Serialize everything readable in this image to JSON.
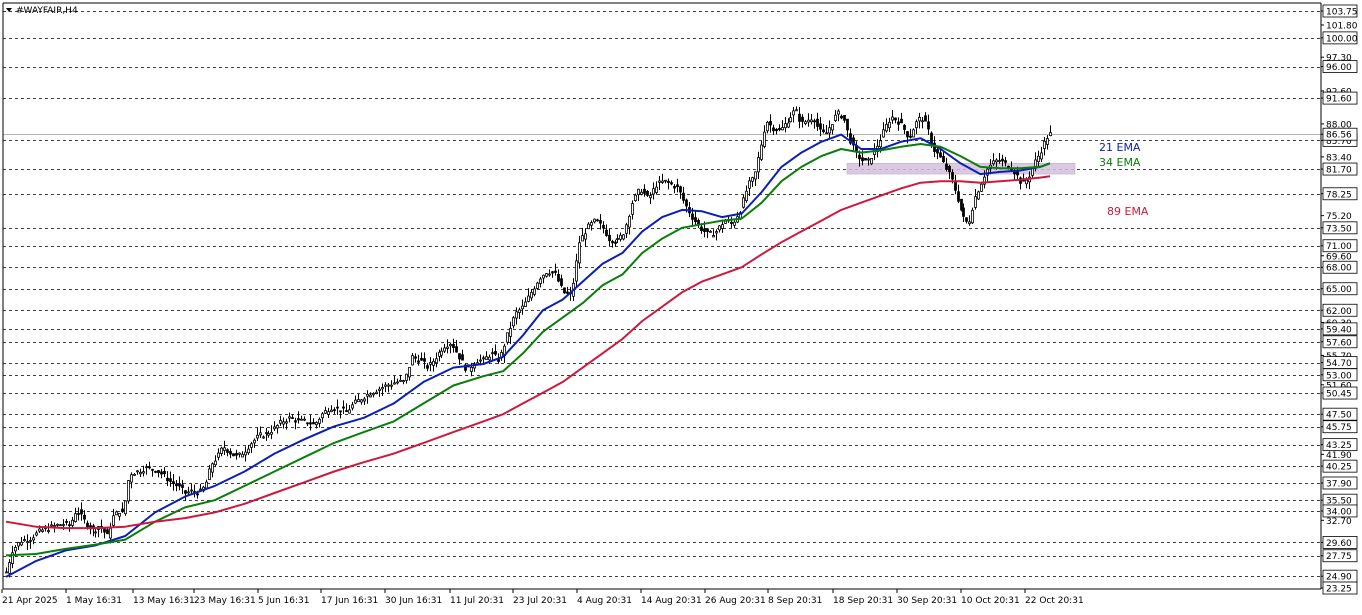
{
  "chart_data": {
    "type": "candlestick",
    "symbol_title": "#WAYFAIR,H4",
    "ylim": [
      23.25,
      103.75
    ],
    "price_levels": [
      103.75,
      101.8,
      100.0,
      97.3,
      96.0,
      92.6,
      91.6,
      88.0,
      86.56,
      85.7,
      83.4,
      81.7,
      78.25,
      75.2,
      73.5,
      71.0,
      69.6,
      68.0,
      65.0,
      62.0,
      60.3,
      59.4,
      57.6,
      55.7,
      54.7,
      53.0,
      51.6,
      50.45,
      47.5,
      45.75,
      43.25,
      41.9,
      40.25,
      37.9,
      35.5,
      34.0,
      32.7,
      29.6,
      27.75,
      24.9,
      23.25
    ],
    "boxed_levels": [
      103.75,
      100.0,
      96.0,
      91.6,
      85.7,
      81.7,
      78.25,
      73.5,
      71.0,
      68.0,
      65.0,
      62.0,
      59.4,
      57.6,
      54.7,
      53.0,
      50.45,
      47.5,
      45.75,
      43.25,
      40.25,
      37.9,
      35.5,
      34.0,
      29.6,
      27.75,
      24.9,
      23.25
    ],
    "dashed_levels": [
      103.75,
      100.0,
      96.0,
      91.6,
      85.7,
      81.7,
      78.25,
      73.5,
      71.0,
      68.0,
      65.0,
      62.0,
      59.4,
      57.6,
      54.7,
      53.0,
      50.45,
      47.5,
      45.75,
      43.25,
      40.25,
      37.9,
      35.5,
      34.0,
      29.6,
      27.75,
      24.9
    ],
    "current_price": 86.56,
    "time_labels": [
      "21 Apr 2025",
      "1 May 16:31",
      "13 May 16:31",
      "23 May 16:31",
      "5 Jun 16:31",
      "17 Jun 16:31",
      "30 Jun 16:31",
      "11 Jul 20:31",
      "23 Jul 20:31",
      "4 Aug 20:31",
      "14 Aug 20:31",
      "26 Aug 20:31",
      "8 Sep 20:31",
      "18 Sep 20:31",
      "30 Sep 20:31",
      "10 Oct 20:31",
      "22 Oct 20:31"
    ],
    "price_path": [
      [
        0,
        25.5
      ],
      [
        6,
        28.5
      ],
      [
        14,
        29.8
      ],
      [
        24,
        30.2
      ],
      [
        34,
        31.2
      ],
      [
        46,
        31.8
      ],
      [
        56,
        32.2
      ],
      [
        64,
        32.0
      ],
      [
        70,
        34.2
      ],
      [
        76,
        33.0
      ],
      [
        82,
        32.0
      ],
      [
        88,
        31.2
      ],
      [
        94,
        32.0
      ],
      [
        102,
        30.5
      ],
      [
        108,
        33.2
      ],
      [
        114,
        34.0
      ],
      [
        118,
        33.5
      ],
      [
        124,
        39.2
      ],
      [
        132,
        39.5
      ],
      [
        140,
        40.0
      ],
      [
        150,
        39.8
      ],
      [
        158,
        39.0
      ],
      [
        166,
        38.0
      ],
      [
        172,
        37.5
      ],
      [
        180,
        36.5
      ],
      [
        188,
        36.8
      ],
      [
        194,
        36.5
      ],
      [
        200,
        37.5
      ],
      [
        206,
        40.5
      ],
      [
        212,
        41.5
      ],
      [
        218,
        43.0
      ],
      [
        226,
        42.0
      ],
      [
        232,
        41.5
      ],
      [
        240,
        42.5
      ],
      [
        246,
        43.5
      ],
      [
        254,
        44.5
      ],
      [
        262,
        44.8
      ],
      [
        270,
        45.5
      ],
      [
        278,
        46.5
      ],
      [
        286,
        47.0
      ],
      [
        294,
        46.5
      ],
      [
        302,
        46.5
      ],
      [
        310,
        46.0
      ],
      [
        318,
        47.5
      ],
      [
        326,
        48.5
      ],
      [
        334,
        48.2
      ],
      [
        342,
        47.8
      ],
      [
        350,
        49.0
      ],
      [
        358,
        49.8
      ],
      [
        366,
        50.5
      ],
      [
        374,
        51.0
      ],
      [
        382,
        51.5
      ],
      [
        392,
        52.0
      ],
      [
        400,
        52.0
      ],
      [
        408,
        55.5
      ],
      [
        416,
        55.0
      ],
      [
        424,
        54.0
      ],
      [
        432,
        55.5
      ],
      [
        440,
        57.0
      ],
      [
        448,
        57.5
      ],
      [
        456,
        55.5
      ],
      [
        464,
        53.5
      ],
      [
        472,
        55.0
      ],
      [
        480,
        55.0
      ],
      [
        488,
        56.0
      ],
      [
        496,
        55.0
      ],
      [
        504,
        58.5
      ],
      [
        512,
        61.5
      ],
      [
        520,
        62.5
      ],
      [
        528,
        64.5
      ],
      [
        536,
        66.5
      ],
      [
        544,
        67.5
      ],
      [
        552,
        67.0
      ],
      [
        560,
        64.5
      ],
      [
        568,
        64.0
      ],
      [
        576,
        71.5
      ],
      [
        584,
        73.5
      ],
      [
        592,
        74.5
      ],
      [
        600,
        73.5
      ],
      [
        606,
        72.0
      ],
      [
        614,
        71.5
      ],
      [
        622,
        73.0
      ],
      [
        630,
        77.0
      ],
      [
        638,
        79.0
      ],
      [
        646,
        77.5
      ],
      [
        654,
        79.5
      ],
      [
        662,
        80.0
      ],
      [
        670,
        79.5
      ],
      [
        676,
        79.0
      ],
      [
        682,
        77.0
      ],
      [
        690,
        75.0
      ],
      [
        698,
        73.5
      ],
      [
        706,
        72.5
      ],
      [
        714,
        73.0
      ],
      [
        722,
        74.5
      ],
      [
        730,
        74.0
      ],
      [
        738,
        76.0
      ],
      [
        746,
        79.5
      ],
      [
        752,
        80.5
      ],
      [
        758,
        84.5
      ],
      [
        764,
        88.5
      ],
      [
        770,
        87.5
      ],
      [
        778,
        87.0
      ],
      [
        786,
        88.5
      ],
      [
        794,
        90.0
      ],
      [
        800,
        88.0
      ],
      [
        806,
        88.5
      ],
      [
        812,
        89.0
      ],
      [
        818,
        87.0
      ],
      [
        824,
        86.5
      ],
      [
        830,
        88.0
      ],
      [
        836,
        89.5
      ],
      [
        842,
        89.0
      ],
      [
        848,
        86.0
      ],
      [
        854,
        84.0
      ],
      [
        860,
        83.0
      ],
      [
        866,
        82.5
      ],
      [
        872,
        84.0
      ],
      [
        878,
        85.5
      ],
      [
        884,
        87.5
      ],
      [
        890,
        89.0
      ],
      [
        896,
        88.5
      ],
      [
        902,
        87.5
      ],
      [
        908,
        86.0
      ],
      [
        914,
        88.0
      ],
      [
        920,
        89.0
      ],
      [
        926,
        87.5
      ],
      [
        932,
        84.5
      ],
      [
        938,
        83.5
      ],
      [
        944,
        82.0
      ],
      [
        950,
        80.5
      ],
      [
        956,
        78.0
      ],
      [
        962,
        75.0
      ],
      [
        968,
        74.0
      ],
      [
        974,
        77.5
      ],
      [
        980,
        79.5
      ],
      [
        986,
        81.5
      ],
      [
        992,
        82.5
      ],
      [
        998,
        83.0
      ],
      [
        1004,
        82.5
      ],
      [
        1010,
        82.0
      ],
      [
        1016,
        81.0
      ],
      [
        1022,
        79.5
      ],
      [
        1028,
        80.5
      ],
      [
        1034,
        82.5
      ],
      [
        1040,
        84.0
      ],
      [
        1046,
        86.0
      ],
      [
        1050,
        86.56
      ]
    ],
    "series": [
      {
        "name": "21 EMA",
        "color": "#0c1fb5",
        "points": [
          [
            0,
            24.8
          ],
          [
            30,
            27.0
          ],
          [
            60,
            28.5
          ],
          [
            90,
            29.2
          ],
          [
            120,
            30.5
          ],
          [
            150,
            33.8
          ],
          [
            180,
            36.0
          ],
          [
            210,
            37.5
          ],
          [
            240,
            39.5
          ],
          [
            270,
            42.0
          ],
          [
            300,
            44.0
          ],
          [
            330,
            45.8
          ],
          [
            360,
            47.0
          ],
          [
            390,
            49.0
          ],
          [
            420,
            52.0
          ],
          [
            450,
            54.0
          ],
          [
            480,
            54.5
          ],
          [
            500,
            55.5
          ],
          [
            520,
            58.5
          ],
          [
            540,
            62.0
          ],
          [
            560,
            63.5
          ],
          [
            580,
            66.0
          ],
          [
            600,
            68.5
          ],
          [
            620,
            70.0
          ],
          [
            640,
            73.0
          ],
          [
            660,
            75.0
          ],
          [
            680,
            76.0
          ],
          [
            700,
            75.8
          ],
          [
            720,
            75.0
          ],
          [
            740,
            75.5
          ],
          [
            760,
            78.5
          ],
          [
            780,
            82.0
          ],
          [
            800,
            84.0
          ],
          [
            820,
            85.5
          ],
          [
            840,
            86.5
          ],
          [
            860,
            84.5
          ],
          [
            880,
            84.5
          ],
          [
            900,
            85.5
          ],
          [
            920,
            86.0
          ],
          [
            940,
            84.5
          ],
          [
            960,
            82.5
          ],
          [
            980,
            81.0
          ],
          [
            1000,
            81.3
          ],
          [
            1020,
            81.5
          ],
          [
            1040,
            82.0
          ],
          [
            1050,
            82.5
          ]
        ]
      },
      {
        "name": "34 EMA",
        "color": "#0a7d0a",
        "points": [
          [
            0,
            27.8
          ],
          [
            30,
            28.0
          ],
          [
            60,
            28.7
          ],
          [
            90,
            29.3
          ],
          [
            120,
            30.0
          ],
          [
            150,
            32.5
          ],
          [
            180,
            34.5
          ],
          [
            210,
            35.5
          ],
          [
            240,
            37.5
          ],
          [
            270,
            39.5
          ],
          [
            300,
            41.5
          ],
          [
            330,
            43.5
          ],
          [
            360,
            45.0
          ],
          [
            390,
            46.5
          ],
          [
            420,
            49.0
          ],
          [
            450,
            51.5
          ],
          [
            480,
            52.8
          ],
          [
            500,
            53.5
          ],
          [
            520,
            56.0
          ],
          [
            540,
            59.0
          ],
          [
            560,
            61.0
          ],
          [
            580,
            63.0
          ],
          [
            600,
            65.5
          ],
          [
            620,
            67.0
          ],
          [
            640,
            70.0
          ],
          [
            660,
            72.0
          ],
          [
            680,
            73.5
          ],
          [
            700,
            74.0
          ],
          [
            720,
            74.5
          ],
          [
            740,
            74.8
          ],
          [
            760,
            77.0
          ],
          [
            780,
            80.0
          ],
          [
            800,
            82.0
          ],
          [
            820,
            83.5
          ],
          [
            840,
            84.5
          ],
          [
            860,
            84.0
          ],
          [
            880,
            84.3
          ],
          [
            900,
            84.8
          ],
          [
            920,
            85.2
          ],
          [
            940,
            84.8
          ],
          [
            960,
            83.5
          ],
          [
            980,
            82.0
          ],
          [
            1000,
            81.8
          ],
          [
            1020,
            81.8
          ],
          [
            1040,
            82.0
          ],
          [
            1050,
            82.5
          ]
        ]
      },
      {
        "name": "89 EMA",
        "color": "#cc1a3c",
        "points": [
          [
            0,
            32.5
          ],
          [
            30,
            31.8
          ],
          [
            60,
            31.6
          ],
          [
            90,
            31.6
          ],
          [
            120,
            31.8
          ],
          [
            150,
            32.5
          ],
          [
            180,
            33.0
          ],
          [
            210,
            33.8
          ],
          [
            240,
            35.0
          ],
          [
            270,
            36.5
          ],
          [
            300,
            38.0
          ],
          [
            330,
            39.5
          ],
          [
            360,
            40.8
          ],
          [
            390,
            42.0
          ],
          [
            420,
            43.5
          ],
          [
            450,
            45.0
          ],
          [
            480,
            46.5
          ],
          [
            500,
            47.5
          ],
          [
            520,
            49.0
          ],
          [
            540,
            50.5
          ],
          [
            560,
            52.0
          ],
          [
            580,
            54.0
          ],
          [
            600,
            56.0
          ],
          [
            620,
            58.0
          ],
          [
            640,
            60.5
          ],
          [
            660,
            62.5
          ],
          [
            680,
            64.5
          ],
          [
            700,
            66.0
          ],
          [
            720,
            67.0
          ],
          [
            740,
            68.0
          ],
          [
            760,
            69.8
          ],
          [
            780,
            71.5
          ],
          [
            800,
            73.0
          ],
          [
            820,
            74.5
          ],
          [
            840,
            76.0
          ],
          [
            860,
            77.0
          ],
          [
            880,
            78.0
          ],
          [
            900,
            79.0
          ],
          [
            920,
            79.8
          ],
          [
            940,
            80.0
          ],
          [
            960,
            80.0
          ],
          [
            980,
            79.8
          ],
          [
            1000,
            80.0
          ],
          [
            1020,
            80.2
          ],
          [
            1040,
            80.5
          ],
          [
            1050,
            80.7
          ]
        ]
      }
    ],
    "zone": {
      "low": 81.0,
      "high": 82.5
    },
    "colors": {
      "background": "#ffffff",
      "axis": "#000000",
      "grid_dash": "#000000",
      "zone": "#d4c0dc",
      "current_line": "#b4b4b4",
      "candle": "#000000"
    }
  }
}
